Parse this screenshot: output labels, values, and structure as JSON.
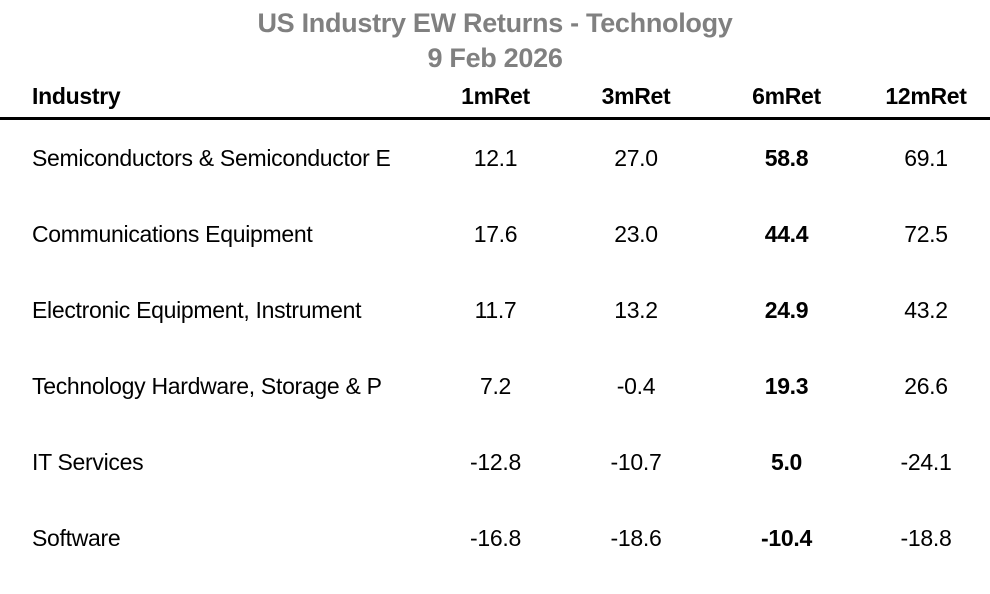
{
  "title": {
    "line1": "US Industry EW Returns - Technology",
    "line2": "9 Feb 2026"
  },
  "table": {
    "columns": [
      "Industry",
      "1mRet",
      "3mRet",
      "6mRet",
      "12mRet"
    ],
    "rows": [
      [
        "Semiconductors & Semiconductor E",
        "12.1",
        "27.0",
        "58.8",
        "69.1"
      ],
      [
        "Communications Equipment",
        "17.6",
        "23.0",
        "44.4",
        "72.5"
      ],
      [
        "Electronic Equipment, Instrument",
        "11.7",
        "13.2",
        "24.9",
        "43.2"
      ],
      [
        "Technology Hardware, Storage & P",
        "7.2",
        "-0.4",
        "19.3",
        "26.6"
      ],
      [
        "IT Services",
        "-12.8",
        "-10.7",
        "5.0",
        "-24.1"
      ],
      [
        "Software",
        "-16.8",
        "-18.6",
        "-10.4",
        "-18.8"
      ]
    ],
    "emphasized_column": "6mRet"
  },
  "colors": {
    "title_gray": "#808080",
    "text": "#000000",
    "rule": "#000000",
    "background": "#ffffff"
  },
  "chart_data": {
    "type": "table",
    "title": "US Industry EW Returns - Technology",
    "subtitle": "9 Feb 2026",
    "columns": [
      "Industry",
      "1mRet",
      "3mRet",
      "6mRet",
      "12mRet"
    ],
    "rows": [
      [
        "Semiconductors & Semiconductor E",
        12.1,
        27.0,
        58.8,
        69.1
      ],
      [
        "Communications Equipment",
        17.6,
        23.0,
        44.4,
        72.5
      ],
      [
        "Electronic Equipment, Instrument",
        11.7,
        13.2,
        24.9,
        43.2
      ],
      [
        "Technology Hardware, Storage & P",
        7.2,
        -0.4,
        19.3,
        26.6
      ],
      [
        "IT Services",
        -12.8,
        -10.7,
        5.0,
        -24.1
      ],
      [
        "Software",
        -16.8,
        -18.6,
        -10.4,
        -18.8
      ]
    ],
    "notes": "6mRet column values rendered in bold; header separated by thick black rule; title and date in gray bold, centered"
  }
}
